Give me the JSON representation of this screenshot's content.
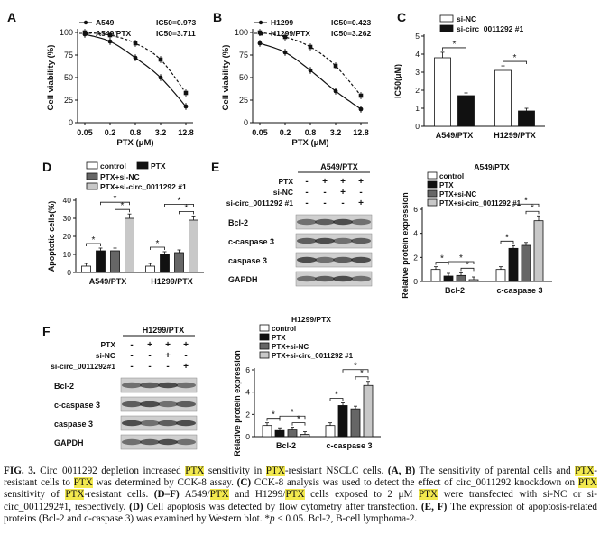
{
  "chart_data": [
    {
      "type": "line",
      "panel": "A",
      "title": "",
      "xlabel": "PTX (μM)",
      "ylabel": "Cell viability (%)",
      "x_ticks": [
        "0.05",
        "0.2",
        "0.8",
        "3.2",
        "12.8"
      ],
      "ylim": [
        0,
        100
      ],
      "y_ticks": [
        "0",
        "25",
        "50",
        "75",
        "100"
      ],
      "series": [
        {
          "name": "A549",
          "ic50_label": "IC50=0.973",
          "marker": "circle",
          "values": [
            98,
            90,
            72,
            50,
            18
          ]
        },
        {
          "name": "A549/PTX",
          "ic50_label": "IC50=3.711",
          "marker": "square",
          "values": [
            100,
            97,
            88,
            70,
            33
          ]
        }
      ]
    },
    {
      "type": "line",
      "panel": "B",
      "title": "",
      "xlabel": "PTX (μM)",
      "ylabel": "Cell viability (%)",
      "x_ticks": [
        "0.05",
        "0.2",
        "0.8",
        "3.2",
        "12.8"
      ],
      "ylim": [
        0,
        100
      ],
      "y_ticks": [
        "0",
        "25",
        "50",
        "75",
        "100"
      ],
      "series": [
        {
          "name": "H1299",
          "ic50_label": "IC50=0.423",
          "marker": "circle",
          "values": [
            88,
            78,
            58,
            35,
            15
          ]
        },
        {
          "name": "H1299/PTX",
          "ic50_label": "IC50=3.262",
          "marker": "square",
          "values": [
            100,
            95,
            84,
            63,
            30
          ]
        }
      ]
    },
    {
      "type": "bar",
      "panel": "C",
      "ylabel": "IC50(μM)",
      "categories": [
        "A549/PTX",
        "H1299/PTX"
      ],
      "ylim": [
        0,
        5
      ],
      "y_ticks": [
        "0",
        "1",
        "2",
        "3",
        "4",
        "5"
      ],
      "series": [
        {
          "name": "si-NC",
          "color": "#ffffff",
          "values": [
            3.8,
            3.1
          ]
        },
        {
          "name": "si-circ_0011292 #1",
          "color": "#111111",
          "values": [
            1.7,
            0.85
          ]
        }
      ],
      "significance": "*"
    },
    {
      "type": "bar",
      "panel": "D",
      "ylabel": "Apoptotic cells(%)",
      "categories": [
        "A549/PTX",
        "H1299/PTX"
      ],
      "ylim": [
        0,
        40
      ],
      "y_ticks": [
        "0",
        "10",
        "20",
        "30",
        "40"
      ],
      "series": [
        {
          "name": "control",
          "color": "#ffffff",
          "values": [
            3.5,
            3.5
          ]
        },
        {
          "name": "PTX",
          "color": "#111111",
          "values": [
            12,
            10
          ]
        },
        {
          "name": "PTX+si-NC",
          "color": "#666666",
          "values": [
            12,
            11
          ]
        },
        {
          "name": "PTX+si-circ_0011292 #1",
          "color": "#c8c8c8",
          "values": [
            30,
            29
          ]
        }
      ],
      "significance": "*"
    },
    {
      "type": "bar",
      "panel": "E",
      "title": "A549/PTX",
      "ylabel": "Relative protein expression",
      "categories": [
        "Bcl-2",
        "c-caspase 3"
      ],
      "ylim": [
        0,
        6
      ],
      "y_ticks": [
        "0",
        "2",
        "4",
        "6"
      ],
      "series": [
        {
          "name": "control",
          "color": "#ffffff",
          "values": [
            1.0,
            1.0
          ]
        },
        {
          "name": "PTX",
          "color": "#111111",
          "values": [
            0.45,
            2.75
          ]
        },
        {
          "name": "PTX+si-NC",
          "color": "#666666",
          "values": [
            0.5,
            3.0
          ]
        },
        {
          "name": "PTX+si-circ_0011292 #1",
          "color": "#c8c8c8",
          "values": [
            0.15,
            5.05
          ]
        }
      ],
      "significance": "*"
    },
    {
      "type": "bar",
      "panel": "F",
      "title": "H1299/PTX",
      "ylabel": "Relative protein expression",
      "categories": [
        "Bcl-2",
        "c-caspase 3"
      ],
      "ylim": [
        0,
        6
      ],
      "y_ticks": [
        "0",
        "2",
        "4",
        "6"
      ],
      "series": [
        {
          "name": "control",
          "color": "#ffffff",
          "values": [
            1.0,
            1.0
          ]
        },
        {
          "name": "PTX",
          "color": "#111111",
          "values": [
            0.55,
            2.8
          ]
        },
        {
          "name": "PTX+si-NC",
          "color": "#666666",
          "values": [
            0.6,
            2.5
          ]
        },
        {
          "name": "PTX+si-circ_0011292 #1",
          "color": "#c8c8c8",
          "values": [
            0.2,
            4.6
          ]
        }
      ],
      "significance": "*"
    }
  ],
  "panel_letters": [
    "A",
    "B",
    "C",
    "D",
    "E",
    "F"
  ],
  "blots": {
    "E": {
      "title": "A549/PTX",
      "treat_rows": [
        {
          "label": "PTX",
          "signs": [
            "-",
            "+",
            "+",
            "+"
          ]
        },
        {
          "label": "si-NC",
          "signs": [
            "-",
            "-",
            "+",
            "-"
          ]
        },
        {
          "label": "si-circ_0011292 #1",
          "signs": [
            "-",
            "-",
            "-",
            "+"
          ]
        }
      ],
      "bands": [
        "Bcl-2",
        "c-caspase 3",
        "caspase 3",
        "GAPDH"
      ]
    },
    "F": {
      "title": "H1299/PTX",
      "treat_rows": [
        {
          "label": "PTX",
          "signs": [
            "-",
            "+",
            "+",
            "+"
          ]
        },
        {
          "label": "si-NC",
          "signs": [
            "-",
            "-",
            "+",
            "-"
          ]
        },
        {
          "label": "si-circ_0011292#1",
          "signs": [
            "-",
            "-",
            "-",
            "+"
          ]
        }
      ],
      "bands": [
        "Bcl-2",
        "c-caspase 3",
        "caspase 3",
        "GAPDH"
      ]
    }
  },
  "caption": [
    {
      "t": "FIG. 3.",
      "s": "lbl"
    },
    {
      "t": "  Circ_0011292 depletion increased "
    },
    {
      "t": "PTX",
      "s": "hl"
    },
    {
      "t": " sensitivity in "
    },
    {
      "t": "PTX",
      "s": "hl"
    },
    {
      "t": "-resistant NSCLC cells. "
    },
    {
      "t": "(A, B)",
      "s": "lbl"
    },
    {
      "t": " The sensitivity of parental cells and "
    },
    {
      "t": "PTX",
      "s": "hl"
    },
    {
      "t": "-resistant cells to "
    },
    {
      "t": "PTX",
      "s": "hl"
    },
    {
      "t": " was determined by CCK-8 assay. "
    },
    {
      "t": "(C)",
      "s": "lbl"
    },
    {
      "t": " CCK-8 analysis was used to detect the effect of circ_0011292 knockdown on "
    },
    {
      "t": "PTX",
      "s": "hl"
    },
    {
      "t": " sensitivity of "
    },
    {
      "t": "PTX",
      "s": "hl"
    },
    {
      "t": "-resistant cells. "
    },
    {
      "t": "(D–F)",
      "s": "lbl"
    },
    {
      "t": " A549/"
    },
    {
      "t": "PTX",
      "s": "hl"
    },
    {
      "t": " and H1299/"
    },
    {
      "t": "PTX",
      "s": "hl"
    },
    {
      "t": " cells exposed to 2 μM "
    },
    {
      "t": "PTX",
      "s": "hl"
    },
    {
      "t": " were transfected with si-NC or si-circ_0011292#1, respectively. "
    },
    {
      "t": "(D)",
      "s": "lbl"
    },
    {
      "t": " Cell apoptosis was detected by flow cytometry after transfection. "
    },
    {
      "t": "(E, F)",
      "s": "lbl"
    },
    {
      "t": " The expression of apoptosis-related proteins (Bcl-2 and c-caspase 3) was examined by Western blot. *"
    },
    {
      "t": "p",
      "s": "it"
    },
    {
      "t": " < 0.05. Bcl-2, B-cell lymphoma-2."
    }
  ]
}
